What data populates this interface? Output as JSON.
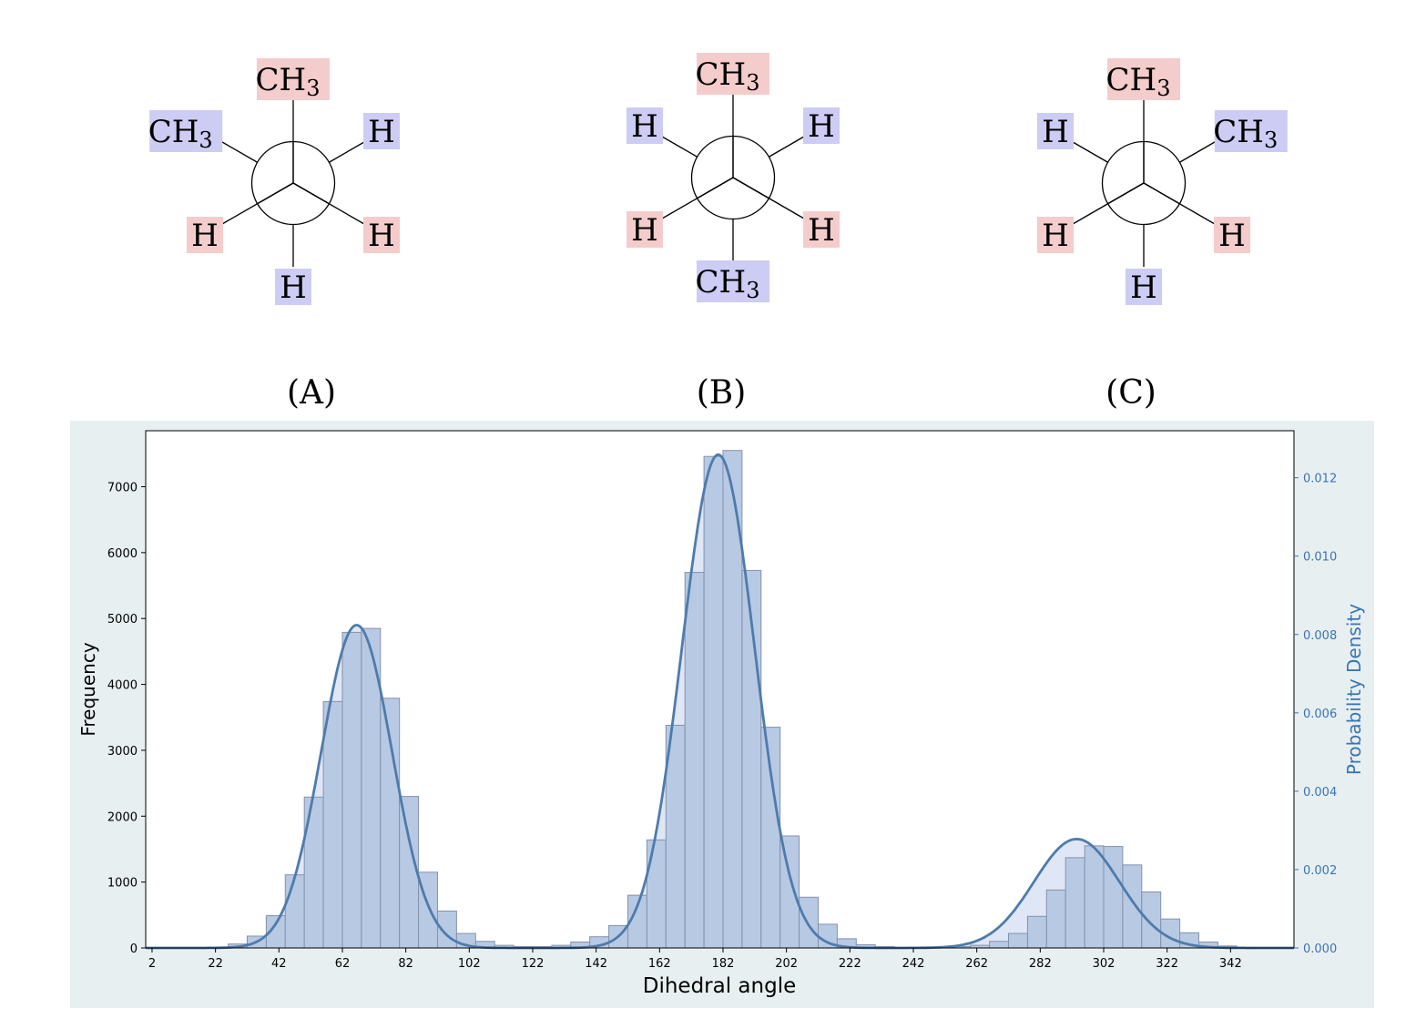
{
  "conformers": [
    {
      "label": "(A)",
      "front": [
        {
          "text": "CH",
          "sub": "3",
          "bg": "#f4cccc"
        },
        {
          "text": "H",
          "sub": "",
          "bg": "#f4cccc"
        },
        {
          "text": "H",
          "sub": "",
          "bg": "#f4cccc"
        }
      ],
      "back": [
        {
          "text": "CH",
          "sub": "3",
          "bg": "#ccccf4"
        },
        {
          "text": "H",
          "sub": "",
          "bg": "#ccccf4"
        },
        {
          "text": "H",
          "sub": "",
          "bg": "#ccccf4"
        }
      ]
    },
    {
      "label": "(B)",
      "front": [
        {
          "text": "CH",
          "sub": "3",
          "bg": "#f4cccc"
        },
        {
          "text": "H",
          "sub": "",
          "bg": "#f4cccc"
        },
        {
          "text": "H",
          "sub": "",
          "bg": "#f4cccc"
        }
      ],
      "back": [
        {
          "text": "H",
          "sub": "",
          "bg": "#ccccf4"
        },
        {
          "text": "CH",
          "sub": "3",
          "bg": "#ccccf4"
        },
        {
          "text": "H",
          "sub": "",
          "bg": "#ccccf4"
        }
      ]
    },
    {
      "label": "(C)",
      "front": [
        {
          "text": "CH",
          "sub": "3",
          "bg": "#f4cccc"
        },
        {
          "text": "H",
          "sub": "",
          "bg": "#f4cccc"
        },
        {
          "text": "H",
          "sub": "",
          "bg": "#f4cccc"
        }
      ],
      "back": [
        {
          "text": "H",
          "sub": "",
          "bg": "#ccccf4"
        },
        {
          "text": "H",
          "sub": "",
          "bg": "#ccccf4"
        },
        {
          "text": "CH",
          "sub": "3",
          "bg": "#ccccf4"
        }
      ]
    }
  ],
  "colors": {
    "front_bg": "#f4cccc",
    "back_bg": "#ccccf4",
    "panel_bg": "#e8eff1",
    "bar_fill": "#b8c9e4",
    "bar_edge": "#8592ab",
    "kde_line": "#4e7bab",
    "kde_fill": "#dfe6f6",
    "right_axis": "#3a75b0"
  },
  "chart_data": {
    "type": "bar",
    "title": "",
    "xlabel": "Dihedral angle",
    "ylabel": "Frequency",
    "ylabel_right": "Probability Density",
    "xlim": [
      0,
      362
    ],
    "ylim": [
      0,
      7850
    ],
    "ylim_right": [
      0,
      0.0132
    ],
    "bin_width": 6,
    "bin_starts": [
      2,
      8,
      14,
      20,
      26,
      32,
      38,
      44,
      50,
      56,
      62,
      68,
      74,
      80,
      86,
      92,
      98,
      104,
      110,
      116,
      122,
      128,
      134,
      140,
      146,
      152,
      158,
      164,
      170,
      176,
      182,
      188,
      194,
      200,
      206,
      212,
      218,
      224,
      230,
      236,
      242,
      248,
      254,
      260,
      266,
      272,
      278,
      284,
      290,
      296,
      302,
      308,
      314,
      320,
      326,
      332,
      338,
      344,
      350,
      356
    ],
    "values": [
      0,
      0,
      0,
      0,
      60,
      180,
      490,
      1110,
      2290,
      3740,
      4790,
      4850,
      3790,
      2300,
      1150,
      560,
      220,
      100,
      40,
      20,
      20,
      40,
      90,
      170,
      340,
      800,
      1640,
      3380,
      5700,
      7460,
      7550,
      5730,
      3350,
      1700,
      770,
      360,
      140,
      50,
      20,
      10,
      0,
      0,
      20,
      40,
      100,
      220,
      480,
      880,
      1370,
      1550,
      1540,
      1260,
      850,
      440,
      230,
      90,
      30,
      10,
      0,
      0
    ],
    "kde_peaks": [
      {
        "center": 66.5,
        "height": 0.00824,
        "sigma": 11.2
      },
      {
        "center": 180.5,
        "height": 0.01259,
        "sigma": 11.5
      },
      {
        "center": 293.5,
        "height": 0.00278,
        "sigma": 13.5
      }
    ],
    "x_ticks": [
      2,
      22,
      42,
      62,
      82,
      102,
      122,
      142,
      162,
      182,
      202,
      222,
      242,
      262,
      282,
      302,
      322,
      342
    ],
    "y_ticks": [
      0,
      1000,
      2000,
      3000,
      4000,
      5000,
      6000,
      7000
    ],
    "y_ticks_right": [
      "0.000",
      "0.002",
      "0.004",
      "0.006",
      "0.008",
      "0.010",
      "0.012"
    ],
    "grid": false,
    "legend": "none"
  }
}
